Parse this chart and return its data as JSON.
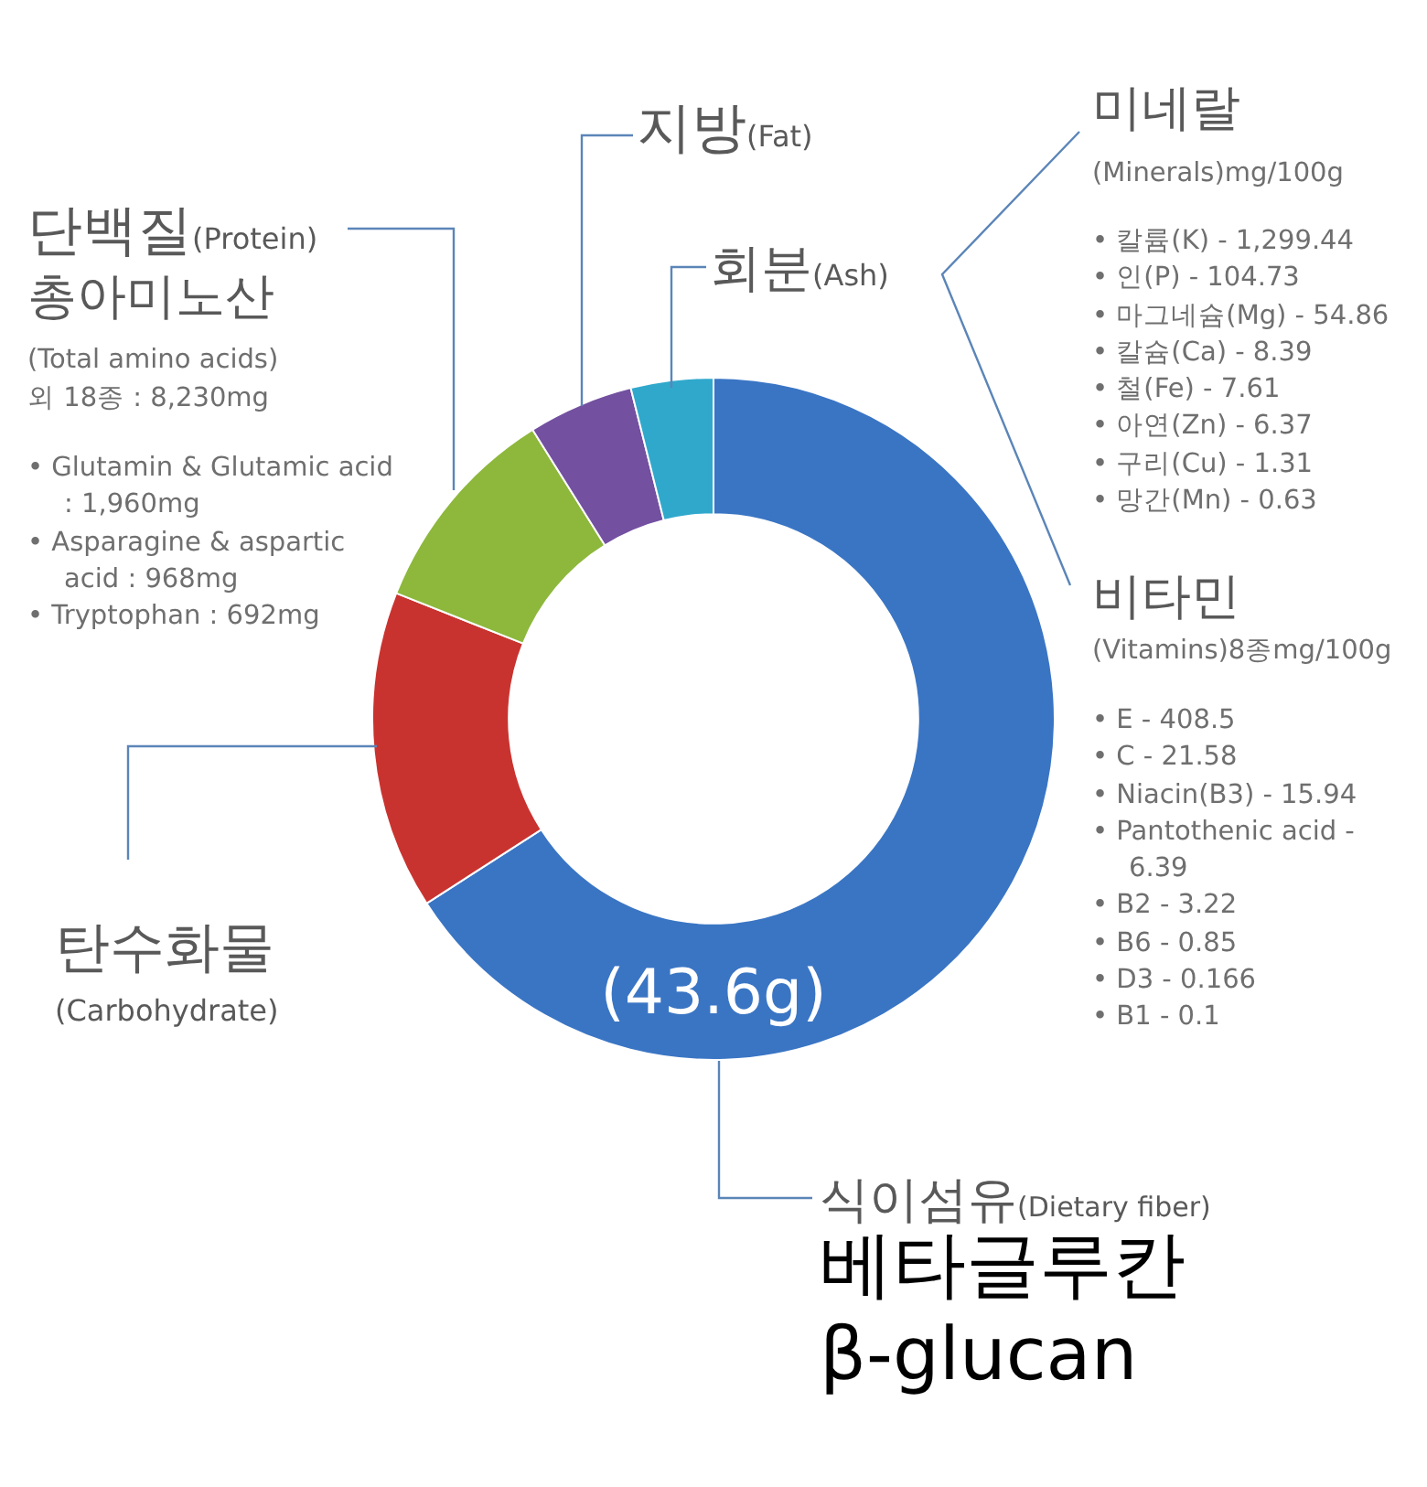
{
  "chart_data": {
    "type": "donut",
    "categories": [
      "식이섬유(Dietary fiber)",
      "탄수화물(Carbohydrate)",
      "단백질(Protein)",
      "지방(Fat)",
      "회분(Ash)"
    ],
    "values": [
      65.9,
      15.1,
      10.1,
      5.0,
      3.9
    ],
    "colors": [
      "#3a75c4",
      "#c9332f",
      "#8db83c",
      "#7350a0",
      "#30a8cc"
    ],
    "annotations": [
      "(43.6g)",
      "베타글루칸\nβ-glucan",
      "총아미노산",
      "(Total amino acids)\n외 18종 : 8,230mg",
      "• Glutamin & Glutamic acid : 1,960mg\n• Asparagine & aspartic acid : 968mg\n• Tryptophan : 692mg",
      "미네랄",
      "(Minerals)mg/100g",
      "• 칼륨(K) - 1,299.44\n• 인(P) - 104.73\n• 마그네슘(Mg) - 54.86\n• 칼슘(Ca) - 8.39\n• 철(Fe) - 7.61\n• 아연(Zn) - 6.37\n• 구리(Cu) - 1.31\n• 망간(Mn) - 0.63",
      "비타민",
      "(Vitamins)8종mg/100g",
      "• E - 408.5\n• C - 21.58\n• Niacin(B3) - 15.94\n• Pantothenic acid - 6.39\n• B2 - 3.22\n• B6 - 0.85\n• D3 - 0.166\n• B1 - 0.1"
    ]
  }
}
